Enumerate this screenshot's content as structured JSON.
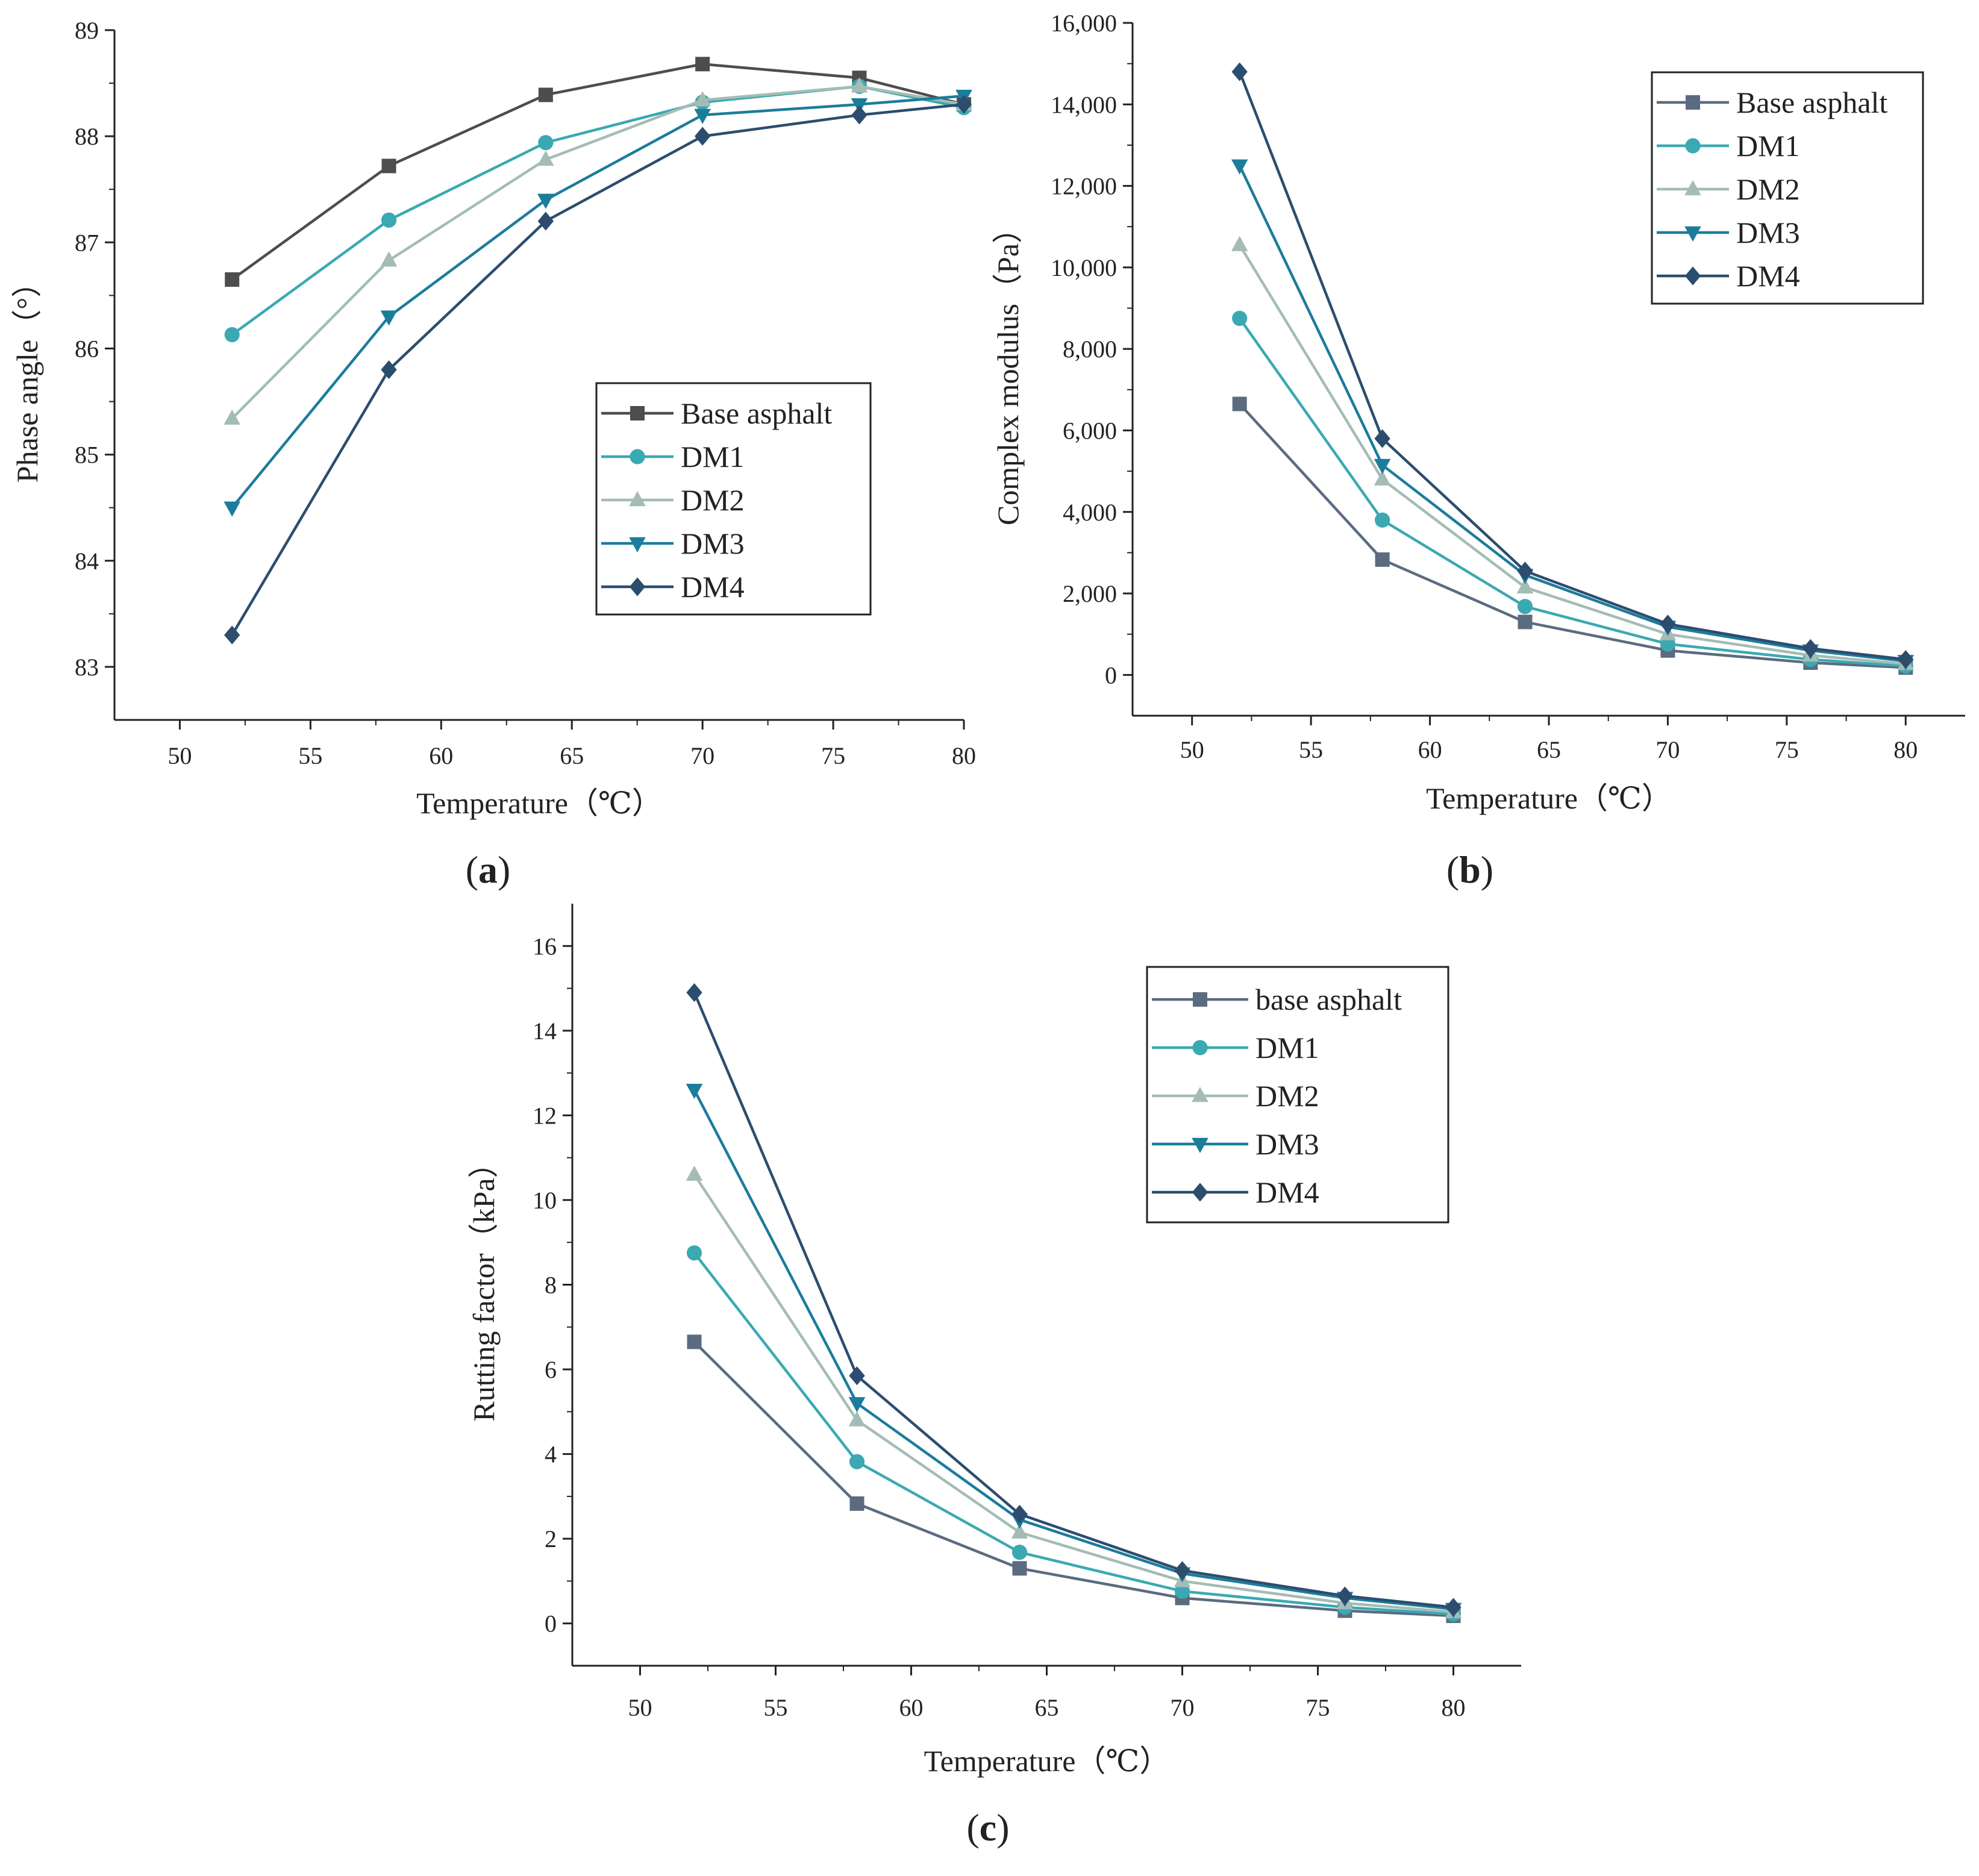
{
  "figure": {
    "colors": {
      "axis": "#222222",
      "series": [
        "#5b6b80",
        "#3aa9b2",
        "#a4bcb5",
        "#1c7c9c",
        "#2c4d6e"
      ],
      "series_a_base": "#4d4d4d"
    }
  },
  "chart_data": [
    {
      "type": "line",
      "panel": "a",
      "label_text": "a",
      "xlabel": "Temperature（℃）",
      "ylabel": "Phase angle（°）",
      "xlim": [
        47.5,
        80
      ],
      "ylim": [
        82.5,
        89
      ],
      "xticks": [
        50,
        55,
        60,
        65,
        70,
        75,
        80
      ],
      "yticks": [
        83,
        84,
        85,
        86,
        87,
        88,
        89
      ],
      "tick_labels_x": [
        "50",
        "55",
        "60",
        "65",
        "70",
        "75",
        "80"
      ],
      "tick_labels_y": [
        "83",
        "84",
        "85",
        "86",
        "87",
        "88",
        "89"
      ],
      "x": [
        52,
        58,
        64,
        70,
        76,
        80
      ],
      "legend_position": "center-right",
      "series": [
        {
          "name": "Base asphalt",
          "marker": "square",
          "values": [
            86.65,
            87.72,
            88.39,
            88.68,
            88.55,
            88.3
          ]
        },
        {
          "name": "DM1",
          "marker": "circle",
          "values": [
            86.13,
            87.21,
            87.94,
            88.32,
            88.47,
            88.27
          ]
        },
        {
          "name": "DM2",
          "marker": "triangle-up",
          "values": [
            85.34,
            86.83,
            87.78,
            88.34,
            88.47,
            88.3
          ]
        },
        {
          "name": "DM3",
          "marker": "triangle-down",
          "values": [
            84.5,
            86.3,
            87.4,
            88.2,
            88.3,
            88.38
          ]
        },
        {
          "name": "DM4",
          "marker": "diamond",
          "values": [
            83.3,
            85.8,
            87.2,
            88.0,
            88.2,
            88.3
          ]
        }
      ]
    },
    {
      "type": "line",
      "panel": "b",
      "label_text": "b",
      "xlabel": "Temperature（℃）",
      "ylabel": "Complex modulus（Pa）",
      "xlim": [
        47.5,
        82.5
      ],
      "ylim": [
        -1000,
        16000
      ],
      "xticks": [
        50,
        55,
        60,
        65,
        70,
        75,
        80
      ],
      "yticks": [
        0,
        2000,
        4000,
        6000,
        8000,
        10000,
        12000,
        14000,
        16000
      ],
      "tick_labels_x": [
        "50",
        "55",
        "60",
        "65",
        "70",
        "75",
        "80"
      ],
      "tick_labels_y": [
        "0",
        "2,000",
        "4,000",
        "6,000",
        "8,000",
        "10,000",
        "12,000",
        "14,000",
        "16,000"
      ],
      "x": [
        52,
        58,
        64,
        70,
        76,
        80
      ],
      "legend_position": "top-right",
      "series": [
        {
          "name": "Base asphalt",
          "marker": "square",
          "values": [
            6650,
            2830,
            1300,
            600,
            300,
            180
          ]
        },
        {
          "name": "DM1",
          "marker": "circle",
          "values": [
            8750,
            3800,
            1680,
            760,
            380,
            220
          ]
        },
        {
          "name": "DM2",
          "marker": "triangle-up",
          "values": [
            10550,
            4800,
            2150,
            1000,
            480,
            270
          ]
        },
        {
          "name": "DM3",
          "marker": "triangle-down",
          "values": [
            12500,
            5150,
            2450,
            1180,
            600,
            340
          ]
        },
        {
          "name": "DM4",
          "marker": "diamond",
          "values": [
            14800,
            5800,
            2550,
            1250,
            650,
            380
          ]
        }
      ]
    },
    {
      "type": "line",
      "panel": "c",
      "label_text": "c",
      "xlabel": "Temperature（℃）",
      "ylabel": "Rutting factor（kPa）",
      "xlim": [
        47.5,
        82.5
      ],
      "ylim": [
        -1,
        17
      ],
      "xticks": [
        50,
        55,
        60,
        65,
        70,
        75,
        80
      ],
      "yticks": [
        0,
        2,
        4,
        6,
        8,
        10,
        12,
        14,
        16
      ],
      "tick_labels_x": [
        "50",
        "55",
        "60",
        "65",
        "70",
        "75",
        "80"
      ],
      "tick_labels_y": [
        "0",
        "2",
        "4",
        "6",
        "8",
        "10",
        "12",
        "14",
        "16"
      ],
      "x": [
        52,
        58,
        64,
        70,
        76,
        80
      ],
      "legend_position": "top-right",
      "series": [
        {
          "name": "base asphalt",
          "marker": "square",
          "values": [
            6.65,
            2.83,
            1.3,
            0.6,
            0.3,
            0.18
          ]
        },
        {
          "name": "DM1",
          "marker": "circle",
          "values": [
            8.75,
            3.82,
            1.68,
            0.76,
            0.38,
            0.22
          ]
        },
        {
          "name": "DM2",
          "marker": "triangle-up",
          "values": [
            10.6,
            4.8,
            2.15,
            1.0,
            0.48,
            0.27
          ]
        },
        {
          "name": "DM3",
          "marker": "triangle-down",
          "values": [
            12.6,
            5.2,
            2.45,
            1.18,
            0.6,
            0.34
          ]
        },
        {
          "name": "DM4",
          "marker": "diamond",
          "values": [
            14.9,
            5.85,
            2.58,
            1.25,
            0.65,
            0.38
          ]
        }
      ]
    }
  ]
}
